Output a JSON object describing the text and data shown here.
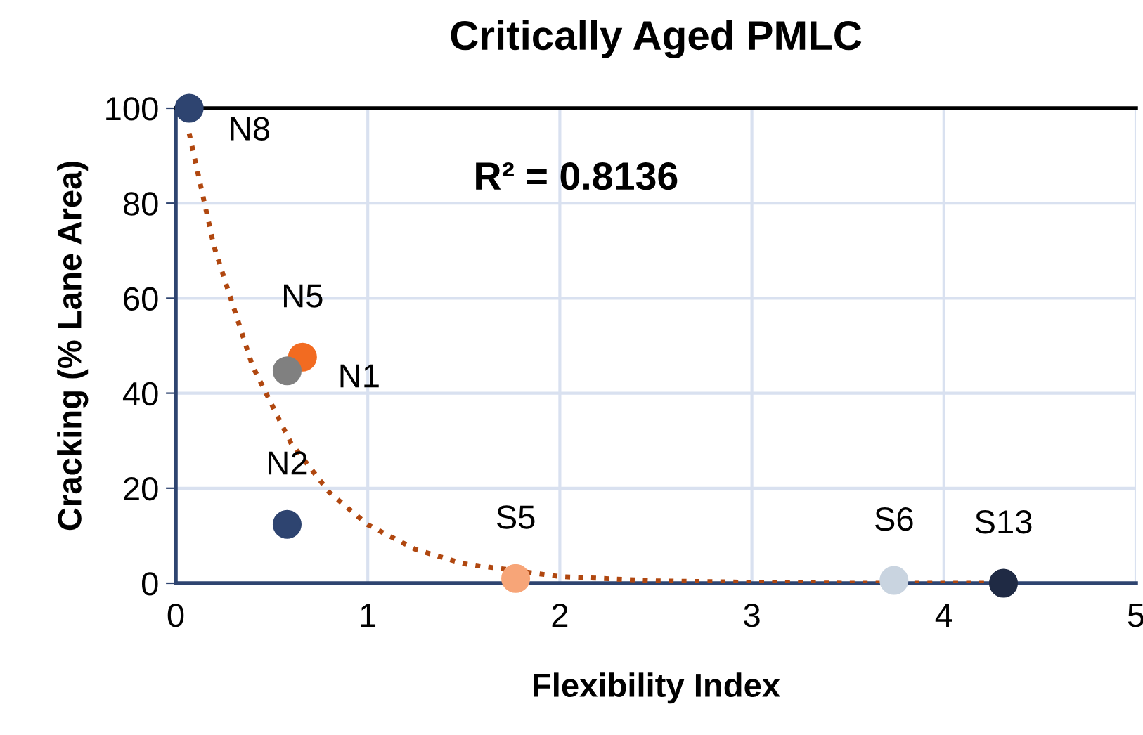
{
  "chart_data": {
    "type": "scatter",
    "title": "Critically Aged PMLC",
    "xlabel": "Flexibility Index",
    "ylabel": "Cracking (% Lane Area)",
    "xlim": [
      0,
      5
    ],
    "ylim": [
      0,
      100
    ],
    "xticks": [
      0,
      1,
      2,
      3,
      4,
      5
    ],
    "yticks": [
      0,
      20,
      40,
      60,
      80,
      100
    ],
    "grid": true,
    "marker": "circle",
    "series": [
      {
        "x": [
          0.07,
          0.66,
          0.58,
          0.58,
          1.77,
          3.74,
          4.31
        ],
        "values": [
          100,
          47.6,
          44.7,
          12.4,
          1,
          0.6,
          0
        ],
        "colors": [
          "#2e4470",
          "#f26b21",
          "#808080",
          "#2e4470",
          "#f7a578",
          "#c9d4e0",
          "#1f2a44"
        ]
      },
      {
        "type": "line",
        "color": "#b0470f",
        "line_style": "dotted",
        "marker": "none",
        "x": [
          0.07,
          0.2,
          0.4,
          0.6,
          0.8,
          1.0,
          1.25,
          1.5,
          2,
          2.5,
          3,
          3.5,
          4,
          4.31
        ],
        "values": [
          94.7,
          70.8,
          45.7,
          29.5,
          19.1,
          12.3,
          7.1,
          4.1,
          1.4,
          0.5,
          0.2,
          0,
          0,
          0
        ]
      }
    ],
    "annotations": [
      {
        "text": "N8",
        "x": 0.07,
        "y": 100
      },
      {
        "text": "N5",
        "x": 0.66,
        "y": 47.6
      },
      {
        "text": "N1",
        "x": 0.58,
        "y": 44.7
      },
      {
        "text": "N2",
        "x": 0.58,
        "y": 12.4
      },
      {
        "text": "S5",
        "x": 1.77,
        "y": 1
      },
      {
        "text": "S6",
        "x": 3.74,
        "y": 0.6
      },
      {
        "text": "S13",
        "x": 4.31,
        "y": 0
      },
      "R² = 0.8136"
    ]
  }
}
